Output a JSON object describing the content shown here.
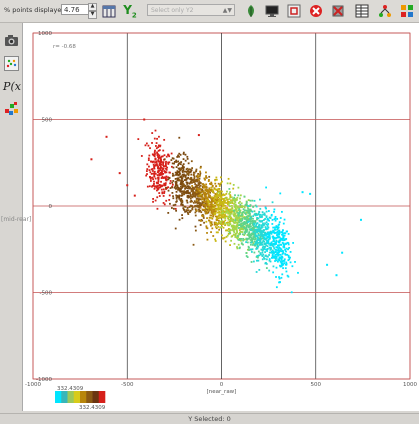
{
  "toolbar": {
    "points_label": "% points displayed",
    "points_value": "4.76",
    "y2_label": "Y",
    "y2_sub": "2",
    "select_placeholder": "Select only Y2",
    "icons": [
      "table-stats-icon",
      "y2-icon",
      "leaf-tool-icon",
      "screen-icon",
      "zoom-box-icon",
      "delete-selection-icon",
      "clear-plot-icon",
      "table-icon",
      "tree-icon",
      "color-blocks-icon"
    ]
  },
  "sidebar": {
    "camera_label": "camera-icon",
    "scatter_label": "scatter-icon",
    "px_label": "P(x",
    "cluster_label": "cluster-icon"
  },
  "plot": {
    "correlation_text": "r= -0.68",
    "y_mid_label": "[mid-rear]",
    "colorbar_min": "332.4309",
    "colorbar_max": "332.4309"
  },
  "status": {
    "text": "Y Selected: 0"
  },
  "colors": {
    "grid": "#c35050",
    "axis": "#222222",
    "colorbar": [
      "#00e5ff",
      "#37b6ba",
      "#9cc85a",
      "#d8cb1a",
      "#b8860b",
      "#8b5a14",
      "#6b3510",
      "#d6201a"
    ]
  },
  "chart_data": {
    "type": "scatter",
    "xlabel": "[near_raw]",
    "ylabel": "",
    "xlim": [
      -1000,
      1000
    ],
    "ylim": [
      -1000,
      1000
    ],
    "x_ticks": [
      -1000,
      -500,
      0,
      500,
      1000
    ],
    "y_ticks": [
      1000,
      500,
      0,
      -500,
      -1000
    ],
    "grid": true,
    "annotation": "r= -0.68",
    "color_mapping": "points colored by x position along a red-brown-olive-green-cyan ramp",
    "band_centers_x": [
      -330,
      -210,
      -130,
      -60,
      10,
      80,
      150,
      220,
      300
    ],
    "band_colors": [
      "#d6201a",
      "#7b4a10",
      "#8b5a14",
      "#b8860b",
      "#c9b814",
      "#a3d64a",
      "#5cd38c",
      "#26d9d6",
      "#00e5ff"
    ],
    "regression": {
      "slope": -0.68,
      "intercept": -20,
      "spread_y": 75
    },
    "outliers": [
      {
        "x": -690,
        "y": 270,
        "c": "#d6201a"
      },
      {
        "x": -610,
        "y": 400,
        "c": "#d6201a"
      },
      {
        "x": -410,
        "y": 500,
        "c": "#d6201a"
      },
      {
        "x": -120,
        "y": 410,
        "c": "#d6201a"
      },
      {
        "x": -540,
        "y": 190,
        "c": "#d6201a"
      },
      {
        "x": -500,
        "y": 120,
        "c": "#d6201a"
      },
      {
        "x": -460,
        "y": 60,
        "c": "#d6201a"
      },
      {
        "x": 430,
        "y": 80,
        "c": "#00e5ff"
      },
      {
        "x": 470,
        "y": 70,
        "c": "#00e5ff"
      },
      {
        "x": 740,
        "y": -80,
        "c": "#00e5ff"
      },
      {
        "x": 640,
        "y": -270,
        "c": "#00e5ff"
      },
      {
        "x": 560,
        "y": -340,
        "c": "#00e5ff"
      },
      {
        "x": 610,
        "y": -400,
        "c": "#00e5ff"
      },
      {
        "x": 310,
        "y": -440,
        "c": "#00e5ff"
      }
    ]
  }
}
